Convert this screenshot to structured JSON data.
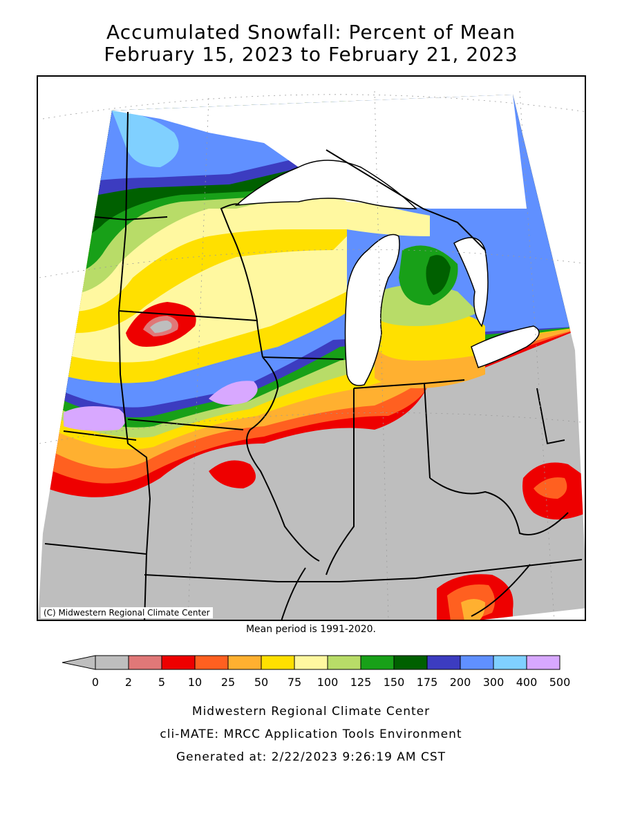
{
  "title_line1": "Accumulated Snowfall: Percent of Mean",
  "title_line2": "February 15, 2023 to February 21, 2023",
  "copyright": "(C) Midwestern Regional Climate Center",
  "mean_period": "Mean period is 1991-2020.",
  "legend": {
    "labels": [
      "0",
      "2",
      "5",
      "10",
      "25",
      "50",
      "75",
      "100",
      "125",
      "150",
      "175",
      "200",
      "300",
      "400",
      "500"
    ],
    "colors": [
      "#bebebe",
      "#e07878",
      "#ee0000",
      "#ff6020",
      "#ffb030",
      "#ffe000",
      "#fff8a0",
      "#b8dc68",
      "#18a018",
      "#006000",
      "#3c3cc0",
      "#6090ff",
      "#80d0ff",
      "#d8a8ff"
    ]
  },
  "footer": {
    "line1": "Midwestern Regional Climate Center",
    "line2": "cli-MATE: MRCC Application Tools Environment",
    "line3": "Generated at: 2/22/2023 9:26:19 AM CST"
  }
}
